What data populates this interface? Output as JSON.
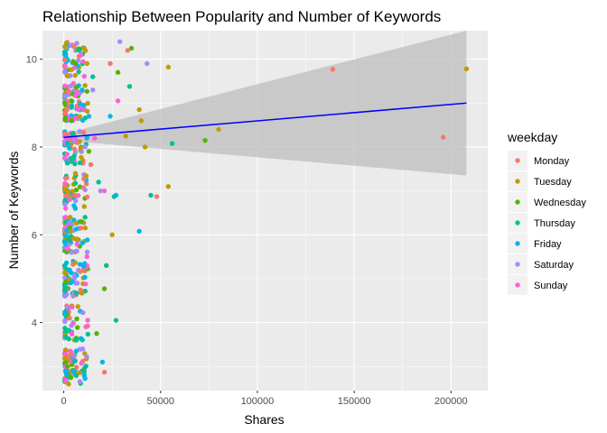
{
  "chart_data": {
    "type": "scatter",
    "title": "Relationship Between Popularity and Number of Keywords",
    "xlabel": "Shares",
    "ylabel": "Number of Keywords",
    "xlim": [
      -11000,
      219000
    ],
    "ylim": [
      2.45,
      10.65
    ],
    "x_ticks": [
      0,
      50000,
      100000,
      150000,
      200000
    ],
    "x_tick_labels": [
      "0",
      "50000",
      "100000",
      "150000",
      "200000"
    ],
    "y_ticks": [
      4,
      6,
      8,
      10
    ],
    "y_tick_labels": [
      "4",
      "6",
      "8",
      "10"
    ],
    "grid": true,
    "legend": {
      "title": "weekday",
      "placement": "right",
      "entries": [
        "Monday",
        "Tuesday",
        "Wednesday",
        "Thursday",
        "Friday",
        "Saturday",
        "Sunday"
      ]
    },
    "colors": {
      "Monday": "#F8766D",
      "Tuesday": "#C49A00",
      "Wednesday": "#53B400",
      "Thursday": "#00C094",
      "Friday": "#00B6EB",
      "Saturday": "#A58AFF",
      "Sunday": "#FB61D7",
      "panel_background": "#EBEBEB",
      "grid_line": "#FFFFFF",
      "trend_line": "#0000FF",
      "confidence_band": "#BDBDBD"
    },
    "trend_line": {
      "method": "linear",
      "x": [
        0,
        208000
      ],
      "y": [
        8.22,
        9.0
      ],
      "ci_lower": [
        8.15,
        7.35
      ],
      "ci_upper": [
        8.3,
        10.65
      ]
    },
    "series": [
      {
        "name": "Monday",
        "points": [
          [
            139000,
            9.77
          ],
          [
            196000,
            8.22
          ],
          [
            48000,
            6.87
          ],
          [
            21000,
            2.87
          ],
          [
            33000,
            10.2
          ],
          [
            24000,
            9.9
          ],
          [
            5200,
            10.3
          ],
          [
            14000,
            7.6
          ],
          [
            3000,
            4.1
          ]
        ]
      },
      {
        "name": "Tuesday",
        "points": [
          [
            208000,
            9.78
          ],
          [
            54000,
            9.82
          ],
          [
            80000,
            8.4
          ],
          [
            39000,
            8.85
          ],
          [
            42000,
            8.0
          ],
          [
            54000,
            7.1
          ],
          [
            40000,
            8.6
          ],
          [
            32000,
            8.25
          ],
          [
            25000,
            6.0
          ],
          [
            12000,
            9.9
          ],
          [
            6000,
            7.4
          ],
          [
            2500,
            2.6
          ],
          [
            7000,
            5.9
          ],
          [
            11000,
            9.4
          ]
        ]
      },
      {
        "name": "Wednesday",
        "points": [
          [
            73000,
            8.15
          ],
          [
            35000,
            10.25
          ],
          [
            28000,
            9.7
          ],
          [
            17000,
            3.75
          ],
          [
            21000,
            4.77
          ],
          [
            4000,
            8.6
          ],
          [
            9000,
            6.3
          ],
          [
            6000,
            9.9
          ],
          [
            13000,
            7.9
          ],
          [
            2000,
            3.0
          ]
        ]
      },
      {
        "name": "Thursday",
        "points": [
          [
            56000,
            8.08
          ],
          [
            45000,
            6.9
          ],
          [
            34000,
            9.38
          ],
          [
            27000,
            4.05
          ],
          [
            26000,
            6.87
          ],
          [
            18000,
            7.2
          ],
          [
            22000,
            5.3
          ],
          [
            8000,
            10.2
          ],
          [
            4000,
            8.9
          ],
          [
            11000,
            6.4
          ],
          [
            15000,
            9.6
          ]
        ]
      },
      {
        "name": "Friday",
        "points": [
          [
            39000,
            6.08
          ],
          [
            20000,
            3.1
          ],
          [
            13000,
            8.7
          ],
          [
            27000,
            6.9
          ],
          [
            6000,
            6.6
          ],
          [
            24000,
            8.7
          ],
          [
            3000,
            5.2
          ],
          [
            9500,
            9.3
          ]
        ]
      },
      {
        "name": "Saturday",
        "points": [
          [
            43000,
            9.9
          ],
          [
            29000,
            10.4
          ],
          [
            15000,
            9.3
          ],
          [
            19000,
            7.0
          ],
          [
            11000,
            8.0
          ],
          [
            4000,
            5.6
          ],
          [
            7000,
            4.9
          ]
        ]
      },
      {
        "name": "Sunday",
        "points": [
          [
            28000,
            9.05
          ],
          [
            16000,
            8.2
          ],
          [
            9000,
            10.1
          ],
          [
            5000,
            9.45
          ],
          [
            21000,
            7.0
          ],
          [
            3000,
            6.8
          ],
          [
            12000,
            5.5
          ]
        ]
      }
    ]
  }
}
